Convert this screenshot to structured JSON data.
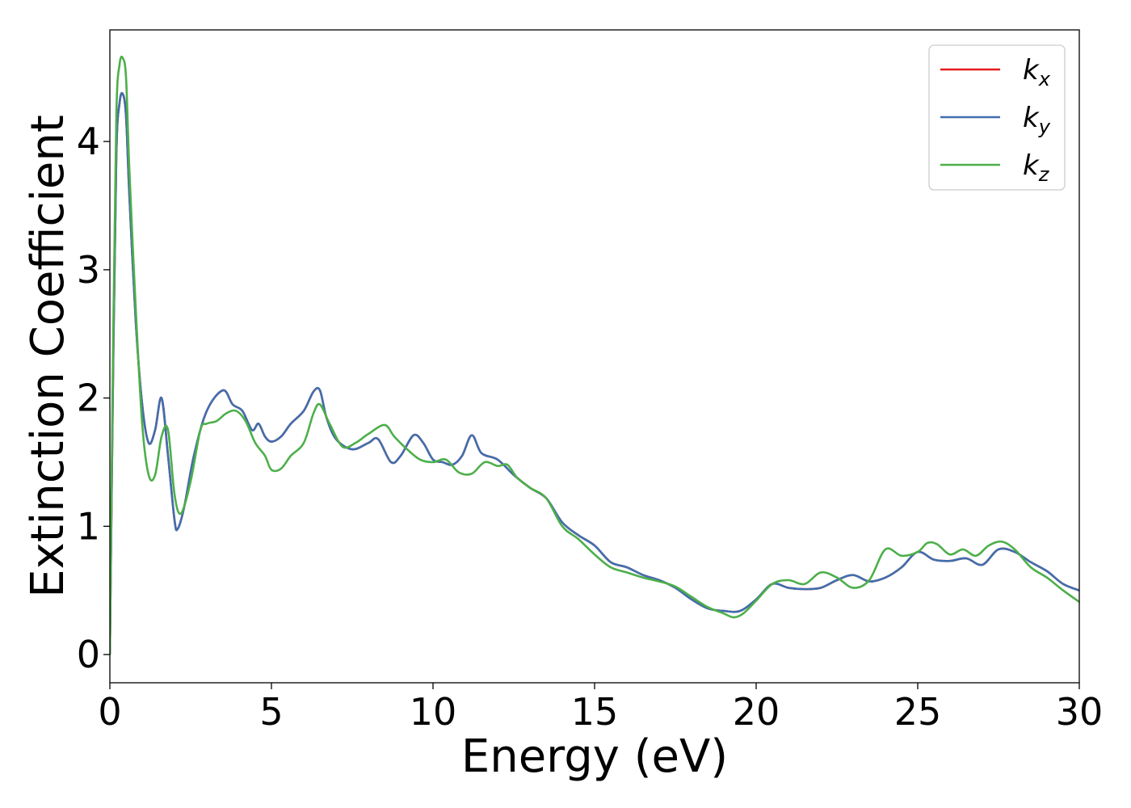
{
  "chart_data": {
    "type": "line",
    "xlabel": "Energy (eV)",
    "ylabel": "Extinction Coefficient",
    "xlim": [
      0,
      30
    ],
    "ylim": [
      -0.22,
      4.87
    ],
    "xticks": [
      0,
      5,
      10,
      15,
      20,
      25,
      30
    ],
    "yticks": [
      0,
      1,
      2,
      3,
      4
    ],
    "grid": false,
    "legend_position": "top-right",
    "series": [
      {
        "name": "k_x",
        "label_main": "k",
        "label_sub": "x",
        "color": "#e41a1c",
        "x": [
          0,
          0.1,
          0.2,
          0.3,
          0.4,
          0.5,
          0.6,
          0.8,
          1.0,
          1.2,
          1.4,
          1.6,
          1.8,
          2.0,
          2.1,
          2.3,
          2.6,
          3.0,
          3.5,
          3.8,
          4.1,
          4.4,
          4.6,
          4.8,
          5.0,
          5.3,
          5.6,
          6.0,
          6.3,
          6.5,
          6.7,
          7.0,
          7.5,
          8.0,
          8.3,
          8.7,
          9.0,
          9.4,
          9.7,
          10.0,
          10.3,
          10.6,
          10.9,
          11.2,
          11.5,
          12.0,
          12.5,
          13.0,
          13.5,
          14.0,
          14.5,
          15.0,
          15.5,
          16.0,
          16.5,
          17.0,
          17.5,
          18.0,
          18.5,
          19.0,
          19.5,
          20.0,
          20.5,
          21.0,
          21.5,
          22.0,
          22.5,
          23.0,
          23.5,
          24.0,
          24.5,
          25.0,
          25.5,
          26.0,
          26.5,
          27.0,
          27.5,
          28.0,
          28.5,
          29.0,
          29.5,
          30.0
        ],
        "y": [
          0.0,
          2.2,
          3.9,
          4.3,
          4.37,
          4.2,
          3.6,
          2.6,
          1.95,
          1.65,
          1.75,
          2.0,
          1.55,
          1.05,
          0.98,
          1.15,
          1.55,
          1.9,
          2.06,
          1.95,
          1.9,
          1.75,
          1.8,
          1.7,
          1.66,
          1.7,
          1.8,
          1.9,
          2.05,
          2.06,
          1.85,
          1.68,
          1.6,
          1.65,
          1.68,
          1.5,
          1.55,
          1.71,
          1.65,
          1.52,
          1.5,
          1.48,
          1.55,
          1.71,
          1.57,
          1.52,
          1.4,
          1.3,
          1.22,
          1.03,
          0.93,
          0.85,
          0.72,
          0.68,
          0.62,
          0.58,
          0.52,
          0.43,
          0.36,
          0.34,
          0.34,
          0.43,
          0.55,
          0.52,
          0.51,
          0.52,
          0.58,
          0.62,
          0.57,
          0.6,
          0.68,
          0.8,
          0.74,
          0.73,
          0.75,
          0.7,
          0.82,
          0.8,
          0.72,
          0.65,
          0.55,
          0.5
        ]
      },
      {
        "name": "k_y",
        "label_main": "k",
        "label_sub": "y",
        "color": "#3f6fae",
        "x": [
          0,
          0.1,
          0.2,
          0.3,
          0.4,
          0.5,
          0.6,
          0.8,
          1.0,
          1.2,
          1.4,
          1.6,
          1.8,
          2.0,
          2.1,
          2.3,
          2.6,
          3.0,
          3.5,
          3.8,
          4.1,
          4.4,
          4.6,
          4.8,
          5.0,
          5.3,
          5.6,
          6.0,
          6.3,
          6.5,
          6.7,
          7.0,
          7.5,
          8.0,
          8.3,
          8.7,
          9.0,
          9.4,
          9.7,
          10.0,
          10.3,
          10.6,
          10.9,
          11.2,
          11.5,
          12.0,
          12.5,
          13.0,
          13.5,
          14.0,
          14.5,
          15.0,
          15.5,
          16.0,
          16.5,
          17.0,
          17.5,
          18.0,
          18.5,
          19.0,
          19.5,
          20.0,
          20.5,
          21.0,
          21.5,
          22.0,
          22.5,
          23.0,
          23.5,
          24.0,
          24.5,
          25.0,
          25.5,
          26.0,
          26.5,
          27.0,
          27.5,
          28.0,
          28.5,
          29.0,
          29.5,
          30.0
        ],
        "y": [
          0.0,
          2.2,
          3.9,
          4.3,
          4.37,
          4.2,
          3.6,
          2.6,
          1.95,
          1.65,
          1.75,
          2.0,
          1.55,
          1.05,
          0.98,
          1.15,
          1.55,
          1.9,
          2.06,
          1.95,
          1.9,
          1.75,
          1.8,
          1.7,
          1.66,
          1.7,
          1.8,
          1.9,
          2.05,
          2.06,
          1.85,
          1.68,
          1.6,
          1.65,
          1.68,
          1.5,
          1.55,
          1.71,
          1.65,
          1.52,
          1.5,
          1.48,
          1.55,
          1.71,
          1.57,
          1.52,
          1.4,
          1.3,
          1.22,
          1.03,
          0.93,
          0.85,
          0.72,
          0.68,
          0.62,
          0.58,
          0.52,
          0.43,
          0.36,
          0.34,
          0.34,
          0.43,
          0.55,
          0.52,
          0.51,
          0.52,
          0.58,
          0.62,
          0.57,
          0.6,
          0.68,
          0.8,
          0.74,
          0.73,
          0.75,
          0.7,
          0.82,
          0.8,
          0.72,
          0.65,
          0.55,
          0.5
        ]
      },
      {
        "name": "k_z",
        "label_main": "k",
        "label_sub": "z",
        "color": "#4daf4a",
        "x": [
          0,
          0.1,
          0.2,
          0.3,
          0.4,
          0.5,
          0.6,
          0.8,
          1.0,
          1.2,
          1.4,
          1.6,
          1.8,
          2.0,
          2.2,
          2.5,
          2.8,
          3.0,
          3.3,
          3.6,
          3.9,
          4.2,
          4.5,
          4.8,
          5.0,
          5.3,
          5.6,
          6.0,
          6.3,
          6.5,
          6.8,
          7.2,
          7.6,
          8.0,
          8.5,
          8.8,
          9.2,
          9.6,
          10.0,
          10.4,
          10.8,
          11.2,
          11.6,
          12.0,
          12.3,
          12.6,
          13.0,
          13.5,
          14.0,
          14.5,
          15.0,
          15.5,
          16.0,
          16.5,
          17.0,
          17.5,
          18.0,
          18.5,
          19.0,
          19.3,
          19.6,
          20.0,
          20.5,
          21.0,
          21.5,
          22.0,
          22.5,
          23.0,
          23.5,
          24.0,
          24.5,
          25.0,
          25.3,
          25.6,
          26.0,
          26.4,
          26.8,
          27.2,
          27.6,
          28.0,
          28.5,
          29.0,
          29.5,
          30.0
        ],
        "y": [
          0.0,
          2.4,
          4.2,
          4.6,
          4.65,
          4.5,
          3.8,
          2.7,
          1.8,
          1.4,
          1.4,
          1.7,
          1.75,
          1.25,
          1.1,
          1.35,
          1.75,
          1.8,
          1.82,
          1.88,
          1.9,
          1.82,
          1.65,
          1.55,
          1.44,
          1.45,
          1.55,
          1.65,
          1.88,
          1.95,
          1.8,
          1.62,
          1.65,
          1.72,
          1.79,
          1.7,
          1.6,
          1.52,
          1.5,
          1.52,
          1.42,
          1.41,
          1.5,
          1.47,
          1.48,
          1.38,
          1.3,
          1.22,
          1.0,
          0.9,
          0.78,
          0.68,
          0.64,
          0.6,
          0.57,
          0.53,
          0.45,
          0.37,
          0.32,
          0.29,
          0.32,
          0.42,
          0.55,
          0.58,
          0.55,
          0.64,
          0.6,
          0.52,
          0.58,
          0.82,
          0.77,
          0.8,
          0.87,
          0.86,
          0.78,
          0.82,
          0.77,
          0.85,
          0.88,
          0.82,
          0.68,
          0.6,
          0.5,
          0.41
        ]
      }
    ]
  }
}
